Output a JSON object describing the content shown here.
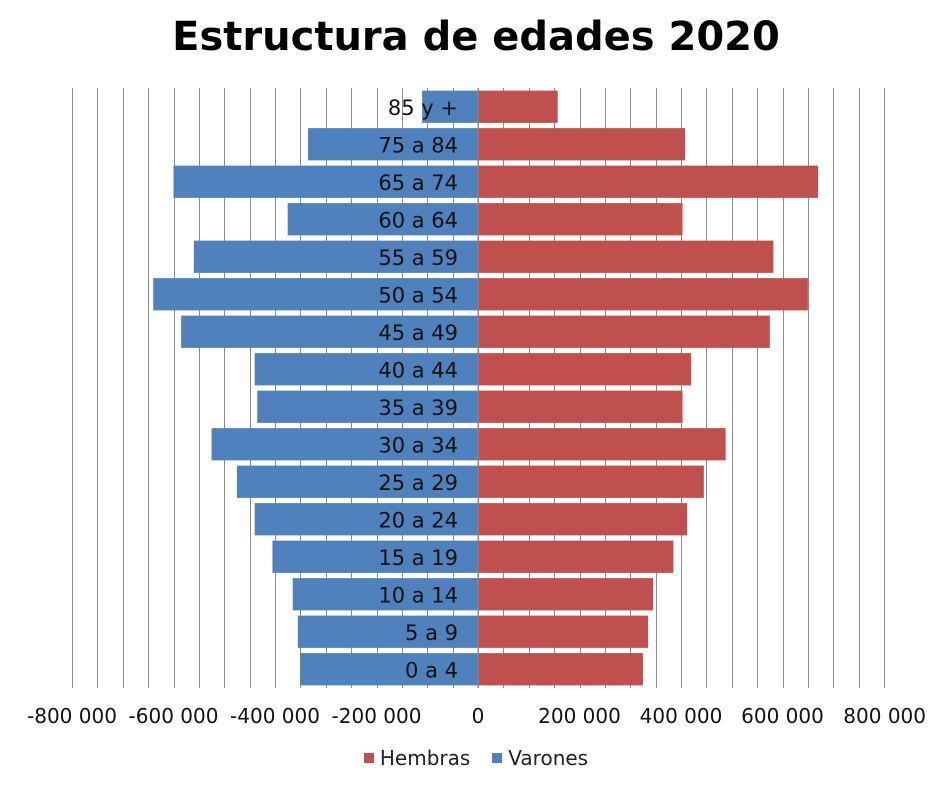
{
  "chart_data": {
    "type": "bar",
    "orientation": "horizontal",
    "title": "Estructura de edades 2020",
    "categories": [
      "0 a 4",
      "5 a 9",
      "10 a 14",
      "15 a 19",
      "20 a 24",
      "25 a 29",
      "30 a 34",
      "35 a 39",
      "40 a 44",
      "45 a 49",
      "50 a 54",
      "55 a 59",
      "60 a 64",
      "65 a 74",
      "75 a 84",
      "85 y +"
    ],
    "series": [
      {
        "name": "Varones",
        "color": "#4f81bd",
        "values": [
          -350000,
          -355000,
          -365000,
          -405000,
          -440000,
          -475000,
          -525000,
          -435000,
          -440000,
          -585000,
          -640000,
          -560000,
          -375000,
          -600000,
          -335000,
          -110000
        ]
      },
      {
        "name": "Hembras",
        "color": "#c0504d",
        "values": [
          325000,
          335000,
          345000,
          385000,
          412000,
          445000,
          488000,
          403000,
          420000,
          575000,
          650000,
          582000,
          403000,
          670000,
          408000,
          157000
        ]
      }
    ],
    "xlim": [
      -800000,
      800000
    ],
    "x_ticks": [
      -800000,
      -600000,
      -400000,
      -200000,
      0,
      200000,
      400000,
      600000,
      800000
    ],
    "x_tick_labels": [
      "-800 000",
      "-600 000",
      "-400 000",
      "-200 000",
      "0",
      "200 000",
      "400 000",
      "600 000",
      "800 000"
    ],
    "legend": [
      "Hembras",
      "Varones"
    ],
    "legend_position": "bottom",
    "grid": "vertical",
    "grid_step": 50000
  }
}
